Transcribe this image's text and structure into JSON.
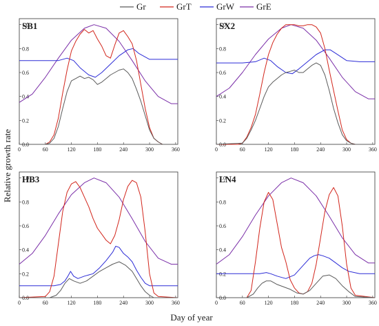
{
  "chart_data": {
    "type": "line",
    "legend_placement": "top-center",
    "ylabel": "Relative growth rate",
    "xlabel": "Day of year",
    "x_ticks": [
      0,
      60,
      120,
      180,
      240,
      300,
      360
    ],
    "y_ticks": [
      "0.0",
      "0.2",
      "0.4",
      "0.6",
      "0.8",
      "1.0"
    ],
    "xlim": [
      0,
      365
    ],
    "ylim": [
      0,
      1.05
    ],
    "legend": [
      {
        "name": "Gr",
        "color": "#5a5a5a"
      },
      {
        "name": "GrT",
        "color": "#d2241a"
      },
      {
        "name": "GrW",
        "color": "#2b2bd6"
      },
      {
        "name": "GrE",
        "color": "#7a2ea8"
      }
    ],
    "panels": [
      {
        "title": "SB1",
        "series": [
          {
            "name": "GrE",
            "x": [
              0,
              30,
              60,
              90,
              120,
              150,
              172,
              200,
              230,
              260,
              290,
              320,
              350,
              365
            ],
            "y": [
              0.35,
              0.42,
              0.56,
              0.72,
              0.87,
              0.97,
              1.0,
              0.97,
              0.86,
              0.7,
              0.53,
              0.4,
              0.34,
              0.34
            ]
          },
          {
            "name": "GrW",
            "x": [
              0,
              60,
              90,
              110,
              125,
              140,
              160,
              175,
              190,
              210,
              230,
              250,
              262,
              275,
              300,
              330,
              365
            ],
            "y": [
              0.7,
              0.7,
              0.7,
              0.72,
              0.7,
              0.64,
              0.58,
              0.56,
              0.6,
              0.67,
              0.74,
              0.79,
              0.8,
              0.76,
              0.71,
              0.71,
              0.71
            ]
          },
          {
            "name": "GrT",
            "x": [
              0,
              60,
              70,
              80,
              90,
              100,
              110,
              120,
              130,
              140,
              150,
              160,
              170,
              180,
              190,
              200,
              210,
              220,
              230,
              240,
              250,
              260,
              270,
              280,
              290,
              300,
              310,
              320,
              330,
              365
            ],
            "y": [
              0.0,
              0.0,
              0.02,
              0.08,
              0.22,
              0.43,
              0.62,
              0.78,
              0.86,
              0.92,
              0.96,
              0.93,
              0.95,
              0.88,
              0.82,
              0.74,
              0.72,
              0.83,
              0.93,
              0.95,
              0.9,
              0.84,
              0.7,
              0.5,
              0.3,
              0.14,
              0.05,
              0.02,
              0.0,
              0.0
            ]
          },
          {
            "name": "Gr",
            "x": [
              0,
              60,
              70,
              80,
              90,
              100,
              110,
              120,
              130,
              140,
              150,
              160,
              170,
              180,
              190,
              200,
              210,
              220,
              230,
              240,
              250,
              260,
              270,
              280,
              290,
              300,
              310,
              320,
              330,
              365
            ],
            "y": [
              0.0,
              0.0,
              0.01,
              0.05,
              0.15,
              0.3,
              0.44,
              0.53,
              0.55,
              0.57,
              0.55,
              0.56,
              0.54,
              0.5,
              0.52,
              0.55,
              0.58,
              0.6,
              0.62,
              0.63,
              0.6,
              0.55,
              0.46,
              0.36,
              0.24,
              0.12,
              0.05,
              0.02,
              0.0,
              0.0
            ]
          }
        ]
      },
      {
        "title": "SX2",
        "series": [
          {
            "name": "GrE",
            "x": [
              0,
              30,
              60,
              90,
              120,
              150,
              172,
              200,
              230,
              260,
              290,
              320,
              350,
              365
            ],
            "y": [
              0.4,
              0.47,
              0.6,
              0.75,
              0.88,
              0.97,
              1.0,
              0.97,
              0.87,
              0.72,
              0.56,
              0.44,
              0.38,
              0.38
            ]
          },
          {
            "name": "GrW",
            "x": [
              0,
              60,
              90,
              110,
              125,
              140,
              160,
              175,
              190,
              210,
              230,
              250,
              262,
              275,
              300,
              330,
              365
            ],
            "y": [
              0.68,
              0.68,
              0.69,
              0.72,
              0.7,
              0.65,
              0.6,
              0.59,
              0.63,
              0.69,
              0.75,
              0.79,
              0.79,
              0.76,
              0.7,
              0.69,
              0.69
            ]
          },
          {
            "name": "GrT",
            "x": [
              0,
              50,
              60,
              70,
              80,
              90,
              100,
              110,
              120,
              130,
              140,
              150,
              160,
              170,
              180,
              190,
              200,
              210,
              220,
              230,
              240,
              250,
              260,
              270,
              280,
              290,
              300,
              310,
              320,
              365
            ],
            "y": [
              0.0,
              0.0,
              0.01,
              0.06,
              0.14,
              0.25,
              0.42,
              0.6,
              0.75,
              0.85,
              0.92,
              0.97,
              1.0,
              1.0,
              1.0,
              0.99,
              0.99,
              1.0,
              1.0,
              0.98,
              0.93,
              0.8,
              0.62,
              0.45,
              0.28,
              0.12,
              0.04,
              0.01,
              0.0,
              0.0
            ]
          },
          {
            "name": "Gr",
            "x": [
              0,
              60,
              70,
              80,
              90,
              100,
              110,
              120,
              130,
              140,
              150,
              160,
              170,
              180,
              190,
              200,
              210,
              220,
              230,
              240,
              250,
              260,
              270,
              280,
              290,
              300,
              310,
              320,
              365
            ],
            "y": [
              0.0,
              0.01,
              0.05,
              0.12,
              0.2,
              0.3,
              0.4,
              0.48,
              0.52,
              0.55,
              0.58,
              0.6,
              0.61,
              0.62,
              0.6,
              0.6,
              0.63,
              0.66,
              0.68,
              0.66,
              0.58,
              0.45,
              0.3,
              0.18,
              0.08,
              0.03,
              0.01,
              0.0,
              0.0
            ]
          }
        ]
      },
      {
        "title": "HB3",
        "series": [
          {
            "name": "GrE",
            "x": [
              0,
              30,
              60,
              90,
              120,
              150,
              172,
              200,
              230,
              260,
              290,
              320,
              350,
              365
            ],
            "y": [
              0.28,
              0.37,
              0.52,
              0.7,
              0.86,
              0.96,
              1.0,
              0.96,
              0.84,
              0.66,
              0.47,
              0.33,
              0.28,
              0.28
            ]
          },
          {
            "name": "GrW",
            "x": [
              0,
              80,
              95,
              105,
              112,
              118,
              125,
              135,
              150,
              170,
              185,
              200,
              215,
              222,
              230,
              240,
              250,
              260,
              270,
              280,
              290,
              300,
              330,
              365
            ],
            "y": [
              0.1,
              0.1,
              0.11,
              0.14,
              0.18,
              0.22,
              0.18,
              0.16,
              0.18,
              0.2,
              0.25,
              0.31,
              0.38,
              0.43,
              0.42,
              0.37,
              0.34,
              0.3,
              0.23,
              0.17,
              0.12,
              0.1,
              0.1,
              0.1
            ]
          },
          {
            "name": "GrT",
            "x": [
              0,
              60,
              70,
              80,
              90,
              100,
              110,
              120,
              130,
              140,
              150,
              160,
              170,
              180,
              190,
              200,
              210,
              220,
              230,
              240,
              250,
              260,
              270,
              280,
              290,
              300,
              310,
              320,
              365
            ],
            "y": [
              0.0,
              0.01,
              0.05,
              0.18,
              0.45,
              0.72,
              0.88,
              0.95,
              0.97,
              0.92,
              0.84,
              0.76,
              0.66,
              0.58,
              0.53,
              0.48,
              0.45,
              0.52,
              0.65,
              0.82,
              0.93,
              0.98,
              0.96,
              0.84,
              0.55,
              0.2,
              0.04,
              0.01,
              0.0
            ]
          },
          {
            "name": "Gr",
            "x": [
              0,
              70,
              85,
              95,
              105,
              115,
              125,
              140,
              155,
              170,
              185,
              200,
              215,
              230,
              245,
              260,
              270,
              280,
              290,
              300,
              310,
              365
            ],
            "y": [
              0.0,
              0.0,
              0.02,
              0.06,
              0.12,
              0.16,
              0.14,
              0.12,
              0.14,
              0.18,
              0.22,
              0.25,
              0.28,
              0.3,
              0.27,
              0.22,
              0.16,
              0.1,
              0.05,
              0.02,
              0.0,
              0.0
            ]
          }
        ]
      },
      {
        "title": "LN4",
        "series": [
          {
            "name": "GrE",
            "x": [
              0,
              30,
              60,
              90,
              120,
              150,
              172,
              200,
              230,
              260,
              290,
              320,
              350,
              365
            ],
            "y": [
              0.28,
              0.36,
              0.51,
              0.69,
              0.85,
              0.96,
              1.0,
              0.96,
              0.85,
              0.68,
              0.5,
              0.36,
              0.29,
              0.29
            ]
          },
          {
            "name": "GrW",
            "x": [
              0,
              80,
              100,
              115,
              125,
              140,
              160,
              180,
              200,
              215,
              225,
              235,
              245,
              260,
              275,
              290,
              305,
              330,
              365
            ],
            "y": [
              0.2,
              0.2,
              0.2,
              0.21,
              0.2,
              0.18,
              0.16,
              0.19,
              0.27,
              0.33,
              0.35,
              0.36,
              0.35,
              0.33,
              0.29,
              0.25,
              0.22,
              0.2,
              0.2
            ]
          },
          {
            "name": "GrT",
            "x": [
              0,
              70,
              80,
              90,
              100,
              110,
              120,
              130,
              140,
              150,
              160,
              170,
              180,
              190,
              200,
              210,
              220,
              230,
              240,
              250,
              260,
              270,
              280,
              290,
              300,
              310,
              320,
              365
            ],
            "y": [
              0.0,
              0.0,
              0.06,
              0.3,
              0.58,
              0.8,
              0.88,
              0.82,
              0.62,
              0.42,
              0.3,
              0.15,
              0.08,
              0.04,
              0.03,
              0.05,
              0.12,
              0.28,
              0.5,
              0.72,
              0.86,
              0.92,
              0.85,
              0.6,
              0.28,
              0.08,
              0.02,
              0.0
            ]
          },
          {
            "name": "Gr",
            "x": [
              0,
              70,
              85,
              95,
              105,
              115,
              125,
              140,
              155,
              170,
              185,
              200,
              215,
              230,
              245,
              260,
              275,
              290,
              305,
              320,
              365
            ],
            "y": [
              0.0,
              0.0,
              0.03,
              0.08,
              0.12,
              0.14,
              0.14,
              0.11,
              0.09,
              0.07,
              0.04,
              0.03,
              0.06,
              0.12,
              0.18,
              0.19,
              0.16,
              0.1,
              0.05,
              0.01,
              0.0
            ]
          }
        ]
      }
    ]
  }
}
